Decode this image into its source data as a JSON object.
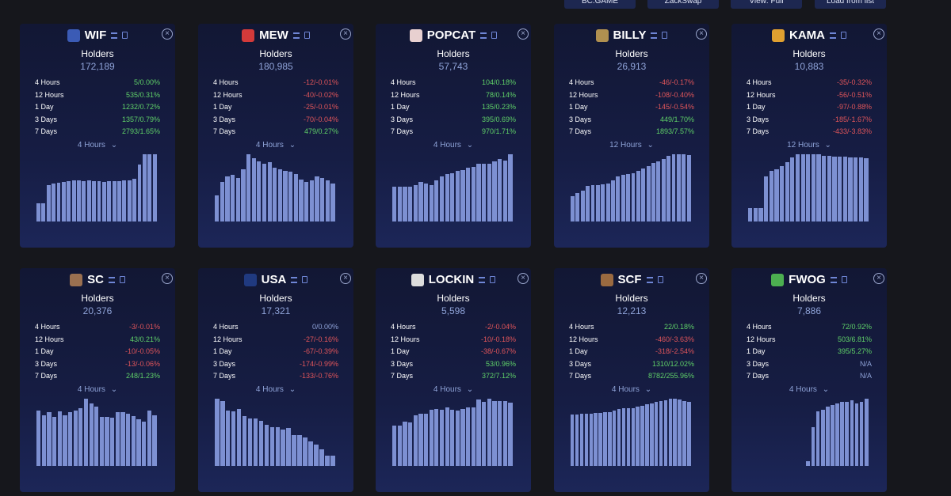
{
  "toolbar": [
    "BC.GAME",
    "ZackSwap",
    "View: Full",
    "Load from list"
  ],
  "holders_label": "Holders",
  "cards": [
    {
      "name": "WIF",
      "holders": "172,189",
      "range": "4 Hours",
      "rows": [
        {
          "period": "4 Hours",
          "change": "5/0.00%",
          "color": "#5fd068"
        },
        {
          "period": "12 Hours",
          "change": "535/0.31%",
          "color": "#5fd068"
        },
        {
          "period": "1 Day",
          "change": "1232/0.72%",
          "color": "#5fd068"
        },
        {
          "period": "3 Days",
          "change": "1357/0.79%",
          "color": "#5fd068"
        },
        {
          "period": "7 Days",
          "change": "2793/1.65%",
          "color": "#5fd068"
        }
      ],
      "bars": [
        22,
        22,
        45,
        47,
        48,
        49,
        50,
        51,
        51,
        50,
        51,
        50,
        50,
        49,
        50,
        50,
        50,
        51,
        51,
        53,
        70,
        83,
        83,
        83
      ]
    },
    {
      "name": "MEW",
      "holders": "180,985",
      "range": "4 Hours",
      "rows": [
        {
          "period": "4 Hours",
          "change": "-12/-0.01%",
          "color": "#e0555a"
        },
        {
          "period": "12 Hours",
          "change": "-40/-0.02%",
          "color": "#e0555a"
        },
        {
          "period": "1 Day",
          "change": "-25/-0.01%",
          "color": "#e0555a"
        },
        {
          "period": "3 Days",
          "change": "-70/-0.04%",
          "color": "#e0555a"
        },
        {
          "period": "7 Days",
          "change": "479/0.27%",
          "color": "#5fd068"
        }
      ],
      "bars": [
        32,
        48,
        55,
        57,
        53,
        64,
        82,
        77,
        73,
        70,
        72,
        66,
        64,
        62,
        61,
        58,
        51,
        48,
        50,
        55,
        53,
        50,
        46
      ]
    },
    {
      "name": "POPCAT",
      "holders": "57,743",
      "range": "4 Hours",
      "rows": [
        {
          "period": "4 Hours",
          "change": "104/0.18%",
          "color": "#5fd068"
        },
        {
          "period": "12 Hours",
          "change": "78/0.14%",
          "color": "#5fd068"
        },
        {
          "period": "1 Day",
          "change": "135/0.23%",
          "color": "#5fd068"
        },
        {
          "period": "3 Days",
          "change": "395/0.69%",
          "color": "#5fd068"
        },
        {
          "period": "7 Days",
          "change": "970/1.71%",
          "color": "#5fd068"
        }
      ],
      "bars": [
        42,
        42,
        42,
        42,
        44,
        48,
        46,
        44,
        50,
        55,
        58,
        59,
        62,
        63,
        66,
        67,
        70,
        70,
        70,
        73,
        76,
        74,
        82
      ]
    },
    {
      "name": "BILLY",
      "holders": "26,913",
      "range": "12 Hours",
      "rows": [
        {
          "period": "4 Hours",
          "change": "-46/-0.17%",
          "color": "#e0555a"
        },
        {
          "period": "12 Hours",
          "change": "-108/-0.40%",
          "color": "#e0555a"
        },
        {
          "period": "1 Day",
          "change": "-145/-0.54%",
          "color": "#e0555a"
        },
        {
          "period": "3 Days",
          "change": "449/1.70%",
          "color": "#5fd068"
        },
        {
          "period": "7 Days",
          "change": "1893/7.57%",
          "color": "#5fd068"
        }
      ],
      "bars": [
        31,
        35,
        38,
        43,
        44,
        44,
        45,
        46,
        50,
        55,
        57,
        58,
        59,
        62,
        65,
        68,
        71,
        73,
        76,
        80,
        82,
        82,
        82,
        81
      ]
    },
    {
      "name": "KAMA",
      "holders": "10,883",
      "range": "12 Hours",
      "rows": [
        {
          "period": "4 Hours",
          "change": "-35/-0.32%",
          "color": "#e0555a"
        },
        {
          "period": "12 Hours",
          "change": "-56/-0.51%",
          "color": "#e0555a"
        },
        {
          "period": "1 Day",
          "change": "-97/-0.88%",
          "color": "#e0555a"
        },
        {
          "period": "3 Days",
          "change": "-185/-1.67%",
          "color": "#e0555a"
        },
        {
          "period": "7 Days",
          "change": "-433/-3.83%",
          "color": "#e0555a"
        }
      ],
      "bars": [
        16,
        16,
        16,
        55,
        62,
        64,
        68,
        72,
        78,
        82,
        82,
        82,
        82,
        82,
        80,
        80,
        79,
        79,
        79,
        78,
        78,
        78,
        77
      ]
    },
    {
      "name": "SC",
      "holders": "20,376",
      "range": "4 Hours",
      "rows": [
        {
          "period": "4 Hours",
          "change": "-3/-0.01%",
          "color": "#e0555a"
        },
        {
          "period": "12 Hours",
          "change": "43/0.21%",
          "color": "#5fd068"
        },
        {
          "period": "1 Day",
          "change": "-10/-0.05%",
          "color": "#e0555a"
        },
        {
          "period": "3 Days",
          "change": "-13/-0.06%",
          "color": "#e0555a"
        },
        {
          "period": "7 Days",
          "change": "248/1.23%",
          "color": "#5fd068"
        }
      ],
      "bars": [
        68,
        62,
        66,
        60,
        67,
        62,
        66,
        68,
        70,
        82,
        76,
        72,
        60,
        60,
        59,
        66,
        66,
        64,
        61,
        57,
        54,
        68,
        62
      ]
    },
    {
      "name": "USA",
      "holders": "17,321",
      "range": "4 Hours",
      "rows": [
        {
          "period": "4 Hours",
          "change": "0/0.00%",
          "color": "#8fa3d8"
        },
        {
          "period": "12 Hours",
          "change": "-27/-0.16%",
          "color": "#e0555a"
        },
        {
          "period": "1 Day",
          "change": "-67/-0.39%",
          "color": "#e0555a"
        },
        {
          "period": "3 Days",
          "change": "-174/-0.99%",
          "color": "#e0555a"
        },
        {
          "period": "7 Days",
          "change": "-133/-0.76%",
          "color": "#e0555a"
        }
      ],
      "bars": [
        57,
        55,
        47,
        46,
        48,
        42,
        40,
        40,
        38,
        35,
        33,
        33,
        31,
        32,
        26,
        26,
        24,
        21,
        18,
        14,
        9,
        9
      ]
    },
    {
      "name": "LOCKIN",
      "holders": "5,598",
      "range": "4 Hours",
      "rows": [
        {
          "period": "4 Hours",
          "change": "-2/-0.04%",
          "color": "#e0555a"
        },
        {
          "period": "12 Hours",
          "change": "-10/-0.18%",
          "color": "#e0555a"
        },
        {
          "period": "1 Day",
          "change": "-38/-0.67%",
          "color": "#e0555a"
        },
        {
          "period": "3 Days",
          "change": "53/0.96%",
          "color": "#5fd068"
        },
        {
          "period": "7 Days",
          "change": "372/7.12%",
          "color": "#5fd068"
        }
      ],
      "bars": [
        48,
        48,
        53,
        52,
        60,
        62,
        62,
        67,
        68,
        67,
        70,
        67,
        66,
        68,
        70,
        70,
        79,
        76,
        80,
        77,
        77,
        77,
        75
      ]
    },
    {
      "name": "SCF",
      "holders": "12,213",
      "range": "4 Hours",
      "rows": [
        {
          "period": "4 Hours",
          "change": "22/0.18%",
          "color": "#5fd068"
        },
        {
          "period": "12 Hours",
          "change": "-460/-3.63%",
          "color": "#e0555a"
        },
        {
          "period": "1 Day",
          "change": "-318/-2.54%",
          "color": "#e0555a"
        },
        {
          "period": "3 Days",
          "change": "1310/12.02%",
          "color": "#5fd068"
        },
        {
          "period": "7 Days",
          "change": "8782/255.96%",
          "color": "#5fd068"
        }
      ],
      "bars": [
        63,
        63,
        64,
        64,
        64,
        65,
        65,
        66,
        66,
        68,
        69,
        70,
        70,
        70,
        72,
        73,
        75,
        76,
        78,
        79,
        80,
        82,
        82,
        81,
        79,
        78
      ]
    },
    {
      "name": "FWOG",
      "holders": "7,886",
      "range": "4 Hours",
      "rows": [
        {
          "period": "4 Hours",
          "change": "72/0.92%",
          "color": "#5fd068"
        },
        {
          "period": "12 Hours",
          "change": "503/6.81%",
          "color": "#5fd068"
        },
        {
          "period": "1 Day",
          "change": "395/5.27%",
          "color": "#5fd068"
        },
        {
          "period": "3 Days",
          "change": "N/A",
          "color": "#8fa3d8"
        },
        {
          "period": "7 Days",
          "change": "N/A",
          "color": "#8fa3d8"
        }
      ],
      "bars": [
        null,
        null,
        null,
        null,
        null,
        null,
        null,
        null,
        null,
        null,
        null,
        null,
        6,
        48,
        68,
        70,
        74,
        76,
        78,
        80,
        80,
        82,
        78,
        80,
        84
      ]
    }
  ]
}
